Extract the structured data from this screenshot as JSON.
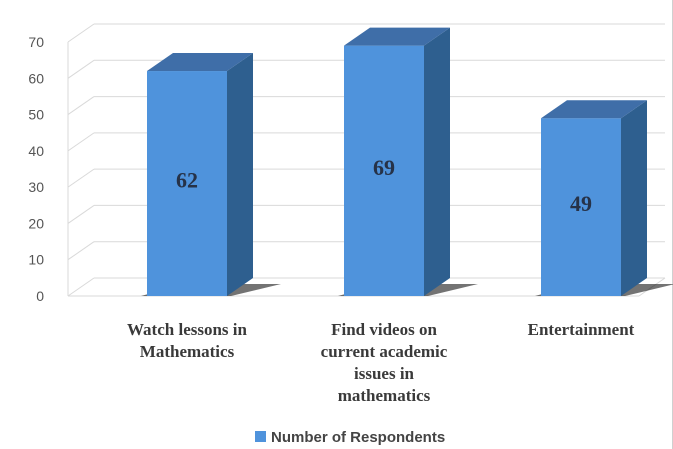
{
  "chart_data": {
    "type": "bar",
    "categories": [
      [
        "Watch lessons in",
        "Mathematics"
      ],
      [
        "Find videos on",
        "current academic",
        "issues in",
        "mathematics"
      ],
      [
        "Entertainment"
      ]
    ],
    "series": [
      {
        "name": "Number of Respondents",
        "values": [
          62,
          69,
          49
        ]
      }
    ],
    "ylim": [
      0,
      70
    ],
    "yticks": [
      "0",
      "10",
      "20",
      "30",
      "40",
      "50",
      "60",
      "70"
    ],
    "legend_position": "bottom",
    "grid": true,
    "colors": {
      "front": "#4f93dc",
      "side": "#2e5f8f",
      "top": "#3f6ea8",
      "legend": "#4f93dc",
      "grid": "#d9d9d9"
    }
  }
}
